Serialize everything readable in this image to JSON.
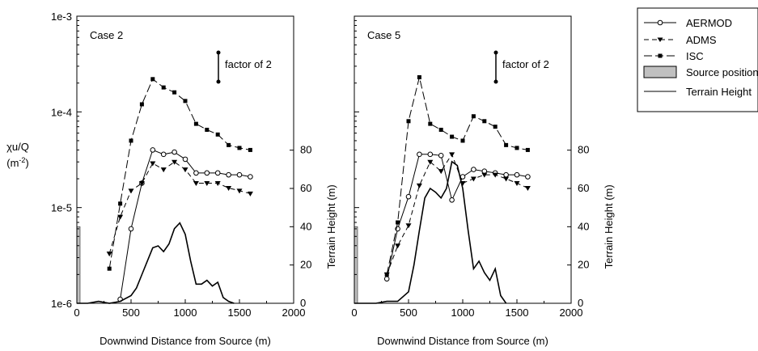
{
  "figure": {
    "y_label_line1": "χu/Q",
    "y_label_line2_base": "(m",
    "y_label_line2_exp": "-2",
    "y_label_line2_close": ")",
    "right_axis_label": "Terrain Height (m)",
    "factor_label": "factor of 2"
  },
  "legend": {
    "items": [
      {
        "label": "AERMOD",
        "style": "circle-solid"
      },
      {
        "label": "ADMS",
        "style": "triangle-dash"
      },
      {
        "label": "ISC",
        "style": "square-longdash"
      },
      {
        "label": "Source position",
        "style": "grey-box"
      },
      {
        "label": "Terrain Height",
        "style": "line"
      }
    ]
  },
  "chart_data": [
    {
      "type": "line",
      "title": "Case 2",
      "xlabel": "Downwind Distance from Source (m)",
      "ylabel": "χu/Q (m-2)",
      "y2label": "Terrain Height (m)",
      "xlim": [
        0,
        2000
      ],
      "ylim": [
        1e-06,
        0.001
      ],
      "yscale": "log",
      "y2lim": [
        0,
        150
      ],
      "xticks": [
        "0",
        "500",
        "1000",
        "1500",
        "2000"
      ],
      "yticks": [
        "1e-6",
        "1e-5",
        "1e-4",
        "1e-3"
      ],
      "y2ticks": [
        "0",
        "20",
        "40",
        "60",
        "80"
      ],
      "series": [
        {
          "name": "AERMOD",
          "x": [
            400,
            500,
            600,
            700,
            800,
            900,
            1000,
            1100,
            1200,
            1300,
            1400,
            1500,
            1600
          ],
          "y": [
            1.1e-06,
            6e-06,
            1.8e-05,
            4e-05,
            3.6e-05,
            3.8e-05,
            3.2e-05,
            2.3e-05,
            2.3e-05,
            2.3e-05,
            2.2e-05,
            2.2e-05,
            2.1e-05
          ]
        },
        {
          "name": "ADMS",
          "x": [
            300,
            400,
            500,
            600,
            700,
            800,
            900,
            1000,
            1100,
            1200,
            1300,
            1400,
            1500,
            1600
          ],
          "y": [
            3.3e-06,
            8e-06,
            1.5e-05,
            1.8e-05,
            2.9e-05,
            2.5e-05,
            3e-05,
            2.5e-05,
            1.8e-05,
            1.8e-05,
            1.8e-05,
            1.6e-05,
            1.5e-05,
            1.4e-05
          ]
        },
        {
          "name": "ISC",
          "x": [
            300,
            400,
            500,
            600,
            700,
            800,
            900,
            1000,
            1100,
            1200,
            1300,
            1400,
            1500,
            1600
          ],
          "y": [
            2.3e-06,
            1.1e-05,
            5e-05,
            0.00012,
            0.00022,
            0.00018,
            0.00016,
            0.00013,
            7.5e-05,
            6.5e-05,
            5.8e-05,
            4.5e-05,
            4.2e-05,
            4e-05
          ]
        },
        {
          "name": "Terrain Height",
          "axis": "right",
          "x": [
            0,
            100,
            200,
            300,
            400,
            500,
            550,
            600,
            650,
            700,
            750,
            800,
            850,
            900,
            950,
            1000,
            1050,
            1100,
            1150,
            1200,
            1250,
            1300,
            1350,
            1400,
            1450
          ],
          "y": [
            0,
            0,
            1,
            0,
            1,
            4,
            8,
            15,
            22,
            29,
            30,
            27,
            31,
            39,
            42,
            36,
            22,
            10,
            10,
            12,
            9,
            11,
            3,
            1,
            0
          ]
        }
      ]
    },
    {
      "type": "line",
      "title": "Case 5",
      "xlabel": "Downwind Distance from Source (m)",
      "ylabel": "",
      "y2label": "Terrain Height (m)",
      "xlim": [
        0,
        2000
      ],
      "ylim": [
        1e-06,
        0.001
      ],
      "yscale": "log",
      "y2lim": [
        0,
        150
      ],
      "xticks": [
        "0",
        "500",
        "1000",
        "1500",
        "2000"
      ],
      "y2ticks": [
        "0",
        "20",
        "40",
        "60",
        "80"
      ],
      "series": [
        {
          "name": "AERMOD",
          "x": [
            300,
            400,
            500,
            600,
            700,
            800,
            900,
            1000,
            1100,
            1200,
            1300,
            1400,
            1500,
            1600
          ],
          "y": [
            1.8e-06,
            6e-06,
            1.3e-05,
            3.6e-05,
            3.6e-05,
            3.5e-05,
            1.2e-05,
            2.1e-05,
            2.5e-05,
            2.4e-05,
            2.3e-05,
            2.2e-05,
            2.2e-05,
            2.1e-05
          ]
        },
        {
          "name": "ADMS",
          "x": [
            300,
            400,
            500,
            600,
            700,
            800,
            900,
            1000,
            1100,
            1200,
            1300,
            1400,
            1500,
            1600
          ],
          "y": [
            2e-06,
            4e-06,
            6.5e-06,
            1.7e-05,
            3e-05,
            2.4e-05,
            3.6e-05,
            1.8e-05,
            2e-05,
            2.2e-05,
            2.2e-05,
            2e-05,
            1.8e-05,
            1.6e-05
          ]
        },
        {
          "name": "ISC",
          "x": [
            300,
            400,
            500,
            600,
            700,
            800,
            900,
            1000,
            1100,
            1200,
            1300,
            1400,
            1500,
            1600
          ],
          "y": [
            2e-06,
            7e-06,
            8e-05,
            0.00023,
            7.5e-05,
            6.5e-05,
            5.5e-05,
            5e-05,
            9e-05,
            8e-05,
            7e-05,
            4.5e-05,
            4.2e-05,
            4e-05
          ]
        },
        {
          "name": "Terrain Height",
          "axis": "right",
          "x": [
            0,
            100,
            200,
            300,
            400,
            500,
            550,
            600,
            650,
            700,
            750,
            800,
            850,
            900,
            950,
            1000,
            1050,
            1100,
            1150,
            1200,
            1250,
            1300,
            1350,
            1400
          ],
          "y": [
            0,
            0,
            0,
            1,
            1,
            6,
            20,
            38,
            55,
            60,
            58,
            55,
            60,
            74,
            72,
            60,
            38,
            18,
            22,
            16,
            12,
            18,
            4,
            0
          ]
        }
      ]
    }
  ]
}
